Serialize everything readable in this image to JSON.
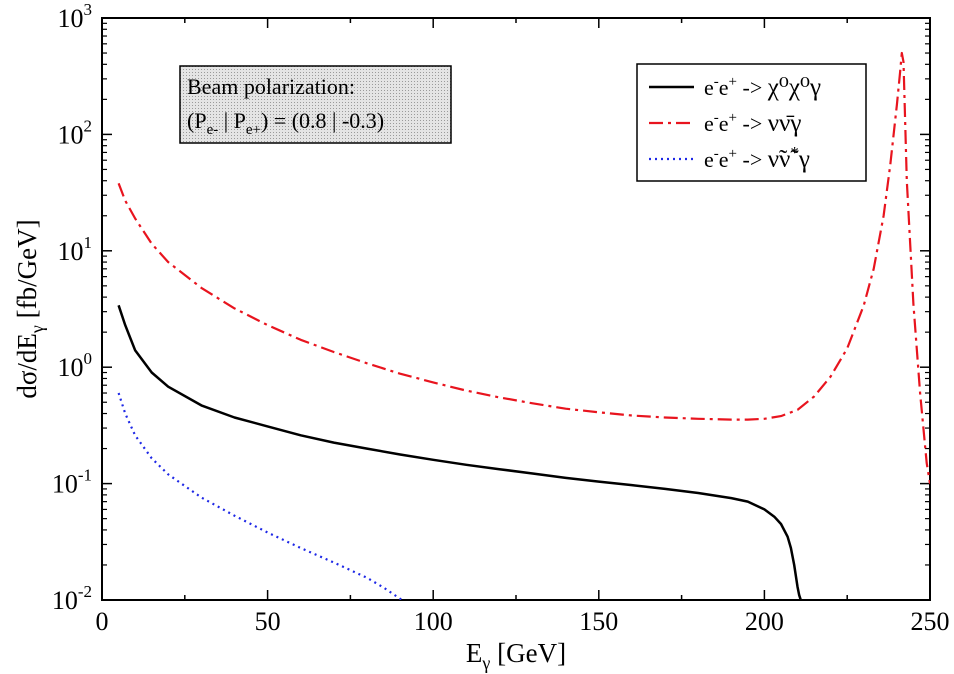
{
  "chart_data": {
    "type": "line",
    "title": "",
    "xlabel": {
      "base": "E",
      "sub": "γ",
      "rest": " [GeV]"
    },
    "ylabel": {
      "pre": "dσ/dE",
      "sub": "γ",
      "post": " [fb/GeV]"
    },
    "xlim": [
      0,
      250
    ],
    "ylim": [
      0.01,
      1000
    ],
    "yscale": "log",
    "grid": false,
    "legend_position": "top-right",
    "x_ticks": [
      {
        "value": 0,
        "label": "0"
      },
      {
        "value": 50,
        "label": "50"
      },
      {
        "value": 100,
        "label": "100"
      },
      {
        "value": 150,
        "label": "150"
      },
      {
        "value": 200,
        "label": "200"
      },
      {
        "value": 250,
        "label": "250"
      }
    ],
    "y_ticks": [
      {
        "value": 0.01,
        "base": "10",
        "exp": "-2"
      },
      {
        "value": 0.1,
        "base": "10",
        "exp": "-1"
      },
      {
        "value": 1,
        "base": "10",
        "exp": "0"
      },
      {
        "value": 10,
        "base": "10",
        "exp": "1"
      },
      {
        "value": 100,
        "base": "10",
        "exp": "2"
      },
      {
        "value": 1000,
        "base": "10",
        "exp": "3"
      }
    ],
    "annotation": {
      "line1": "Beam polarization:",
      "line2": {
        "a": "(P",
        "sub1": "e-",
        "b": " | P",
        "sub2": "e+",
        "c": ") = (0.8 | -0.3)"
      }
    },
    "series": [
      {
        "name": "e⁻e⁺ -> χ⁰χ⁰γ",
        "legend": {
          "proc": "e",
          "s1": "-",
          "mid": "e",
          "s2": "+",
          "arrow": " -> ",
          "fs": "χ⁰χ⁰γ"
        },
        "color": "#000000",
        "dash": "",
        "x": [
          5,
          7,
          10,
          15,
          20,
          30,
          40,
          50,
          60,
          70,
          80,
          90,
          100,
          110,
          120,
          130,
          140,
          150,
          160,
          170,
          180,
          190,
          195,
          200,
          203,
          205,
          207,
          208,
          209,
          210,
          210.5,
          211
        ],
        "y": [
          3.4,
          2.3,
          1.4,
          0.9,
          0.68,
          0.47,
          0.37,
          0.31,
          0.26,
          0.225,
          0.2,
          0.178,
          0.16,
          0.145,
          0.133,
          0.122,
          0.112,
          0.104,
          0.097,
          0.09,
          0.083,
          0.075,
          0.07,
          0.06,
          0.052,
          0.045,
          0.035,
          0.028,
          0.02,
          0.013,
          0.011,
          0.01
        ]
      },
      {
        "name": "e⁻e⁺ -> νν̄γ",
        "legend": {
          "proc": "e",
          "s1": "-",
          "mid": "e",
          "s2": "+",
          "arrow": " -> ",
          "fs": "νν̄γ"
        },
        "color": "#e8141e",
        "dash": "14,5,3,5",
        "x": [
          5,
          7,
          10,
          15,
          20,
          30,
          40,
          50,
          60,
          70,
          80,
          90,
          100,
          110,
          120,
          130,
          140,
          150,
          160,
          170,
          180,
          190,
          195,
          200,
          205,
          210,
          215,
          220,
          225,
          230,
          233,
          236,
          238,
          240,
          241,
          241.5,
          242,
          243,
          245,
          247,
          249,
          250
        ],
        "y": [
          38,
          27,
          19,
          11.5,
          8,
          4.8,
          3.2,
          2.3,
          1.72,
          1.35,
          1.08,
          0.88,
          0.74,
          0.63,
          0.55,
          0.49,
          0.44,
          0.41,
          0.385,
          0.37,
          0.36,
          0.355,
          0.355,
          0.36,
          0.38,
          0.43,
          0.56,
          0.83,
          1.45,
          3.4,
          7,
          20,
          55,
          180,
          350,
          500,
          420,
          40,
          3.5,
          0.6,
          0.15,
          0.1
        ]
      },
      {
        "name": "e⁻e⁺ -> ν̃ν̃*γ",
        "legend": {
          "proc": "e",
          "s1": "-",
          "mid": "e",
          "s2": "+",
          "arrow": " -> ",
          "fs": "ν̃ν̃",
          "fs_sup": "*",
          "fs_end": "γ"
        },
        "color": "#1e28e6",
        "dash": "2,4",
        "x": [
          5,
          7,
          10,
          15,
          20,
          30,
          40,
          50,
          60,
          70,
          80,
          85,
          88,
          91
        ],
        "y": [
          0.6,
          0.4,
          0.26,
          0.165,
          0.12,
          0.076,
          0.053,
          0.038,
          0.028,
          0.021,
          0.0155,
          0.0128,
          0.0112,
          0.0098
        ]
      }
    ]
  }
}
